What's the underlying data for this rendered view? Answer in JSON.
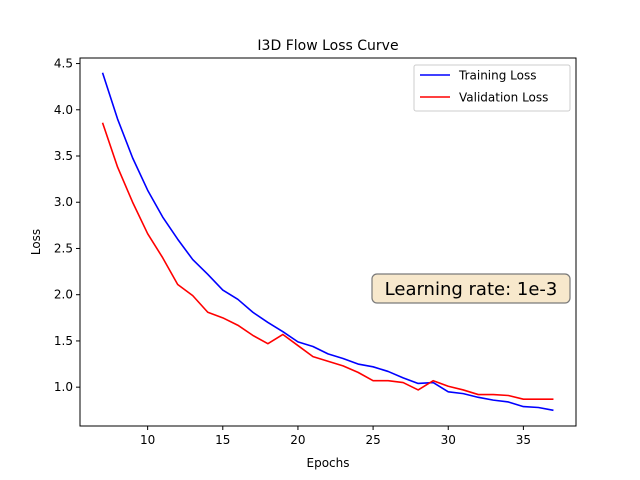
{
  "chart_data": {
    "type": "line",
    "title": "I3D Flow Loss Curve",
    "xlabel": "Epochs",
    "ylabel": "Loss",
    "xlim": [
      5.5,
      38.5
    ],
    "ylim": [
      0.58,
      4.56
    ],
    "xticks": [
      10,
      15,
      20,
      25,
      30,
      35
    ],
    "yticks": [
      1.0,
      1.5,
      2.0,
      2.5,
      3.0,
      3.5,
      4.0,
      4.5
    ],
    "grid": false,
    "legend_position": "top-right",
    "x": [
      7,
      8,
      9,
      10,
      11,
      12,
      13,
      14,
      15,
      16,
      17,
      18,
      19,
      20,
      21,
      22,
      23,
      24,
      25,
      26,
      27,
      28,
      29,
      30,
      31,
      32,
      33,
      34,
      35,
      36,
      37
    ],
    "series": [
      {
        "name": "Training Loss",
        "color": "#0000ff",
        "values": [
          4.4,
          3.9,
          3.48,
          3.13,
          2.84,
          2.6,
          2.38,
          2.22,
          2.05,
          1.95,
          1.81,
          1.7,
          1.6,
          1.49,
          1.44,
          1.36,
          1.31,
          1.25,
          1.22,
          1.17,
          1.1,
          1.04,
          1.05,
          0.95,
          0.93,
          0.89,
          0.86,
          0.84,
          0.79,
          0.78,
          0.75
        ]
      },
      {
        "name": "Validation Loss",
        "color": "#ff0000",
        "values": [
          3.86,
          3.38,
          3.0,
          2.66,
          2.4,
          2.11,
          1.99,
          1.81,
          1.75,
          1.67,
          1.56,
          1.47,
          1.57,
          1.45,
          1.33,
          1.28,
          1.23,
          1.16,
          1.07,
          1.07,
          1.05,
          0.97,
          1.07,
          1.01,
          0.97,
          0.92,
          0.92,
          0.91,
          0.87,
          0.87,
          0.87
        ]
      }
    ],
    "annotation": {
      "text": "Learning rate: 1e-3",
      "box_color": "#f7e8cc"
    }
  }
}
